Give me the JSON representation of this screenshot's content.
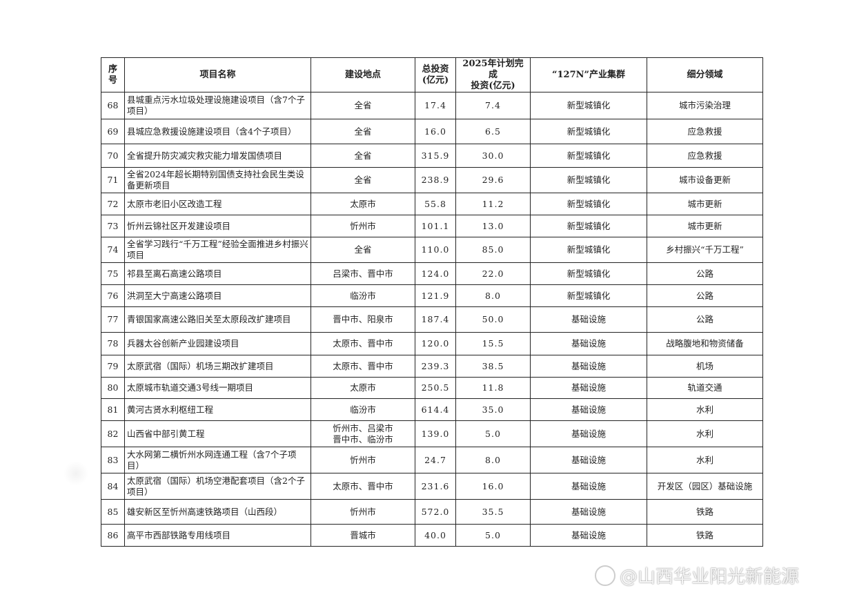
{
  "headers": [
    "序号",
    "项目名称",
    "建设地点",
    "总投资(亿元)",
    "2025年计划完成投资(亿元)",
    "“127N”产业集群",
    "细分领域"
  ],
  "header_lines": {
    "seq": [
      "序",
      "号"
    ],
    "invest": [
      "总投资",
      "(亿元)"
    ],
    "plan": [
      "2025年计划完成",
      "投资(亿元)"
    ]
  },
  "rows": [
    {
      "no": "68",
      "name": "县城重点污水垃圾处理设施建设项目（含7个子项目）",
      "location": "全省",
      "total": "17.4",
      "plan2025": "7.4",
      "cluster": "新型城镇化",
      "field": "城市污染治理"
    },
    {
      "no": "69",
      "name": "县城应急救援设施建设项目（含4个子项目）",
      "location": "全省",
      "total": "16.0",
      "plan2025": "6.5",
      "cluster": "新型城镇化",
      "field": "应急救援"
    },
    {
      "no": "70",
      "name": "全省提升防灾减灾救灾能力增发国债项目",
      "location": "全省",
      "total": "315.9",
      "plan2025": "30.0",
      "cluster": "新型城镇化",
      "field": "应急救援"
    },
    {
      "no": "71",
      "name": "全省2024年超长期特别国债支持社会民生类设备更新项目",
      "location": "全省",
      "total": "238.9",
      "plan2025": "29.6",
      "cluster": "新型城镇化",
      "field": "城市设备更新"
    },
    {
      "no": "72",
      "name": "太原市老旧小区改造工程",
      "location": "太原市",
      "total": "55.8",
      "plan2025": "11.2",
      "cluster": "新型城镇化",
      "field": "城市更新"
    },
    {
      "no": "73",
      "name": "忻州云锦社区开发建设项目",
      "location": "忻州市",
      "total": "101.1",
      "plan2025": "13.0",
      "cluster": "新型城镇化",
      "field": "城市更新"
    },
    {
      "no": "74",
      "name": "全省学习践行“千万工程”经验全面推进乡村振兴项目",
      "location": "全省",
      "total": "110.0",
      "plan2025": "85.0",
      "cluster": "新型城镇化",
      "field": "乡村振兴“千万工程”"
    },
    {
      "no": "75",
      "name": "祁县至离石高速公路项目",
      "location": "吕梁市、晋中市",
      "total": "124.0",
      "plan2025": "22.0",
      "cluster": "新型城镇化",
      "field": "公路"
    },
    {
      "no": "76",
      "name": "洪洞至大宁高速公路项目",
      "location": "临汾市",
      "total": "121.9",
      "plan2025": "8.0",
      "cluster": "新型城镇化",
      "field": "公路"
    },
    {
      "no": "77",
      "name": "青银国家高速公路旧关至太原段改扩建项目",
      "location": "晋中市、阳泉市",
      "total": "187.4",
      "plan2025": "50.0",
      "cluster": "基础设施",
      "field": "公路"
    },
    {
      "no": "78",
      "name": "兵器太谷创新产业园建设项目",
      "location": "太原市、晋中市",
      "total": "120.0",
      "plan2025": "15.5",
      "cluster": "基础设施",
      "field": "战略腹地和物资储备"
    },
    {
      "no": "79",
      "name": "太原武宿（国际）机场三期改扩建项目",
      "location": "太原市、晋中市",
      "total": "239.3",
      "plan2025": "38.5",
      "cluster": "基础设施",
      "field": "机场"
    },
    {
      "no": "80",
      "name": "太原城市轨道交通3号线一期项目",
      "location": "太原市",
      "total": "250.5",
      "plan2025": "11.8",
      "cluster": "基础设施",
      "field": "轨道交通"
    },
    {
      "no": "81",
      "name": "黄河古贤水利枢纽工程",
      "location": "临汾市",
      "total": "614.4",
      "plan2025": "35.0",
      "cluster": "基础设施",
      "field": "水利"
    },
    {
      "no": "82",
      "name": "山西省中部引黄工程",
      "location": "忻州市、吕梁市 晋中市、临汾市",
      "total": "139.0",
      "plan2025": "5.0",
      "cluster": "基础设施",
      "field": "水利"
    },
    {
      "no": "83",
      "name": "大水网第二横忻州水网连通工程（含7个子项目）",
      "location": "忻州市",
      "total": "24.7",
      "plan2025": "8.0",
      "cluster": "基础设施",
      "field": "水利"
    },
    {
      "no": "84",
      "name": "太原武宿（国际）机场空港配套项目（含2个子项目）",
      "location": "太原市、晋中市",
      "total": "231.6",
      "plan2025": "16.0",
      "cluster": "基础设施",
      "field": "开发区（园区）基础设施"
    },
    {
      "no": "85",
      "name": "雄安新区至忻州高速铁路项目（山西段）",
      "location": "忻州市",
      "total": "572.0",
      "plan2025": "35.5",
      "cluster": "基础设施",
      "field": "铁路"
    },
    {
      "no": "86",
      "name": "高平市西部铁路专用线项目",
      "location": "晋城市",
      "total": "40.0",
      "plan2025": "5.0",
      "cluster": "基础设施",
      "field": "铁路"
    }
  ],
  "watermark": {
    "logo": "du",
    "text": "@山西华业阳光新能源"
  }
}
